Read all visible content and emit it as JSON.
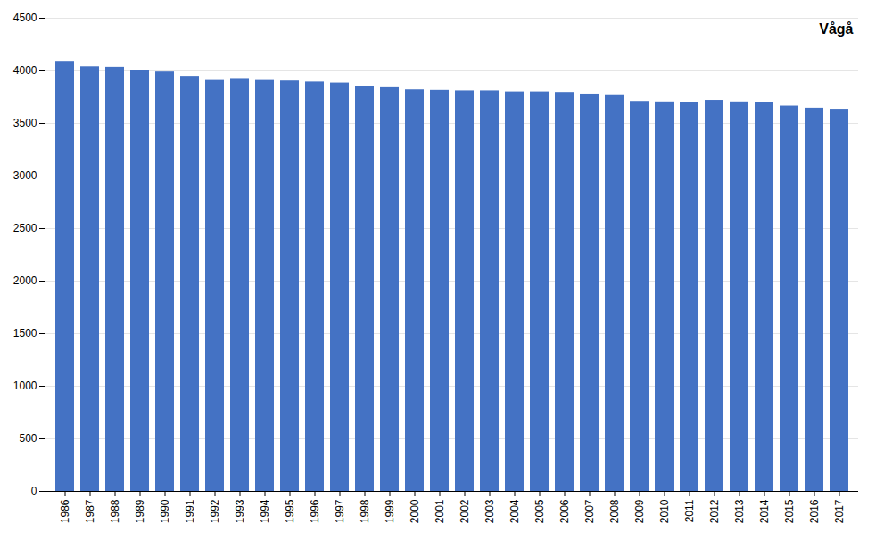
{
  "chart_data": {
    "type": "bar",
    "categories": [
      "1986",
      "1987",
      "1988",
      "1989",
      "1990",
      "1991",
      "1992",
      "1993",
      "1994",
      "1995",
      "1996",
      "1997",
      "1998",
      "1999",
      "2000",
      "2001",
      "2002",
      "2003",
      "2004",
      "2005",
      "2006",
      "2007",
      "2008",
      "2009",
      "2010",
      "2011",
      "2012",
      "2013",
      "2014",
      "2015",
      "2016",
      "2017"
    ],
    "values": [
      4083,
      4040,
      4035,
      4002,
      3990,
      3948,
      3910,
      3920,
      3910,
      3905,
      3895,
      3885,
      3855,
      3840,
      3820,
      3815,
      3810,
      3810,
      3800,
      3800,
      3795,
      3780,
      3765,
      3710,
      3705,
      3695,
      3720,
      3705,
      3700,
      3665,
      3645,
      3635
    ],
    "color": "#4472C4",
    "annotation": "Vågå",
    "ylim": [
      0,
      4500
    ],
    "yticks": [
      0,
      500,
      1000,
      1500,
      2000,
      2500,
      3000,
      3500,
      4000,
      4500
    ],
    "grid": true
  }
}
